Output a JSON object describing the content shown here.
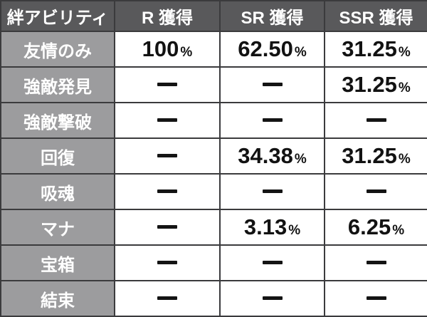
{
  "dash_char": "―",
  "percent_suffix": "%",
  "colors": {
    "header_bg": "#59595b",
    "header_text": "#ffffff",
    "label_bg": "#9c9c9e",
    "label_text": "#ffffff",
    "value_bg": "#ffffff",
    "value_text": "#121212",
    "border": "#3b3b3d"
  },
  "chart_data": {
    "type": "table",
    "title": "",
    "columns": [
      "絆アビリティ",
      "R 獲得",
      "SR 獲得",
      "SSR 獲得"
    ],
    "rows": [
      [
        "友情のみ",
        "100%",
        "62.50%",
        "31.25%"
      ],
      [
        "強敵発見",
        "―",
        "―",
        "31.25%"
      ],
      [
        "強敵撃破",
        "―",
        "―",
        "―"
      ],
      [
        "回復",
        "―",
        "34.38%",
        "31.25%"
      ],
      [
        "吸魂",
        "―",
        "―",
        "―"
      ],
      [
        "マナ",
        "―",
        "3.13%",
        "6.25%"
      ],
      [
        "宝箱",
        "―",
        "―",
        "―"
      ],
      [
        "結束",
        "―",
        "―",
        "―"
      ]
    ]
  }
}
